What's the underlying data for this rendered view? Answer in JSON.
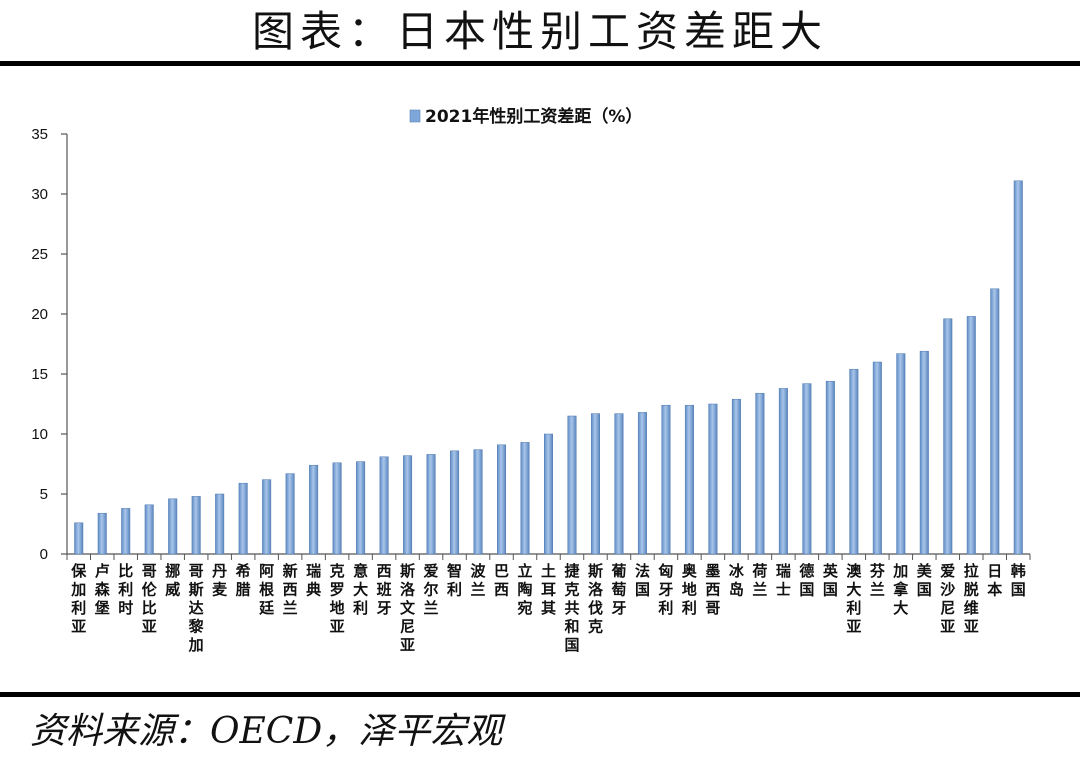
{
  "page": {
    "title": "图表：日本性别工资差距大",
    "source": "资料来源：OECD，泽平宏观"
  },
  "chart_data": {
    "type": "bar",
    "title": "",
    "xlabel": "",
    "ylabel": "",
    "ylim": [
      0,
      35
    ],
    "yticks": [
      0,
      5,
      10,
      15,
      20,
      25,
      30,
      35
    ],
    "grid": false,
    "legend_position": "top-center",
    "bar_color": "#7ea6d8",
    "series": [
      {
        "name": "2021年性别工资差距（%）",
        "values": [
          2.6,
          3.4,
          3.8,
          4.1,
          4.6,
          4.8,
          5.0,
          5.9,
          6.2,
          6.7,
          7.4,
          7.6,
          7.7,
          8.1,
          8.2,
          8.3,
          8.6,
          8.7,
          9.1,
          9.3,
          10.0,
          11.5,
          11.7,
          11.7,
          11.8,
          12.4,
          12.4,
          12.5,
          12.9,
          13.4,
          13.8,
          14.2,
          14.4,
          15.4,
          16.0,
          16.7,
          16.9,
          19.6,
          19.8,
          22.1,
          31.1
        ]
      }
    ],
    "categories": [
      "保加利亚",
      "卢森堡",
      "比利时",
      "哥伦比亚",
      "挪威",
      "哥斯达黎加",
      "丹麦",
      "希腊",
      "阿根廷",
      "新西兰",
      "瑞典",
      "克罗地亚",
      "意大利",
      "西班牙",
      "斯洛文尼亚",
      "爱尔兰",
      "智利",
      "波兰",
      "巴西",
      "立陶宛",
      "土耳其",
      "捷克共和国",
      "斯洛伐克",
      "葡萄牙",
      "法国",
      "匈牙利",
      "奥地利",
      "墨西哥",
      "冰岛",
      "荷兰",
      "瑞士",
      "德国",
      "英国",
      "澳大利亚",
      "芬兰",
      "加拿大",
      "美国",
      "爱沙尼亚",
      "拉脱维亚",
      "日本",
      "韩国"
    ]
  }
}
